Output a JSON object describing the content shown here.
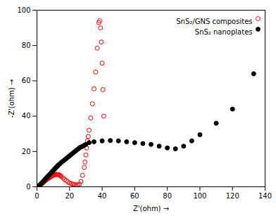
{
  "chart_data": {
    "type": "scatter",
    "xlabel": "Z'(ohm)",
    "ylabel": "-Z'(ohm)",
    "xlim": [
      0,
      140
    ],
    "ylim": [
      0,
      100
    ],
    "xticks": [
      0,
      20,
      40,
      60,
      80,
      100,
      120,
      140
    ],
    "yticks": [
      0,
      20,
      40,
      60,
      80,
      100
    ],
    "grid": false,
    "legend": "upper right",
    "series": [
      {
        "name": "SnS₂/GNS composites",
        "color": "red",
        "marker": "circle_open",
        "x": [
          1.0,
          1.5,
          2.0,
          2.5,
          3.0,
          3.5,
          4.0,
          4.5,
          5.0,
          5.5,
          6.0,
          6.5,
          7.0,
          7.5,
          8.0,
          8.5,
          9.0,
          9.5,
          10.0,
          10.5,
          11.0,
          11.5,
          12.0,
          12.5,
          13.0,
          13.5,
          14.0,
          14.5,
          15.0,
          16.0,
          17.0,
          18.0,
          19.0,
          20.0,
          21.0,
          22.0,
          23.0,
          24.0,
          25.0,
          26.0,
          27.0,
          28.0,
          29.0,
          29.5,
          30.0,
          30.5,
          31.0,
          31.5,
          32.0,
          33.0,
          34.0,
          35.0,
          36.0,
          37.0,
          38.0,
          38.5,
          39.0,
          39.5,
          40.0,
          40.5,
          41.0
        ],
        "values": [
          0.3,
          0.6,
          1.0,
          1.4,
          1.8,
          2.2,
          2.6,
          3.0,
          3.4,
          3.8,
          4.2,
          4.5,
          4.8,
          5.1,
          5.4,
          5.7,
          6.0,
          6.3,
          6.5,
          6.7,
          6.8,
          6.9,
          7.0,
          7.0,
          6.9,
          6.8,
          6.5,
          6.2,
          5.8,
          5.0,
          4.2,
          3.5,
          2.8,
          2.2,
          1.8,
          1.5,
          1.3,
          1.1,
          1.0,
          1.5,
          3.0,
          6.5,
          11.0,
          14.0,
          18.0,
          22.0,
          26.0,
          28.5,
          32.0,
          39.0,
          47.0,
          55.5,
          65.0,
          78.5,
          93.0,
          94.0,
          90.0,
          82.0,
          70.0,
          55.0,
          40.0
        ]
      },
      {
        "name": "SnS₂ nanoplates",
        "color": "black",
        "marker": "circle",
        "x": [
          1.0,
          1.5,
          2.0,
          2.5,
          3.0,
          3.5,
          4.0,
          4.5,
          5.0,
          5.5,
          6.0,
          6.5,
          7.0,
          7.5,
          8.0,
          8.5,
          9.0,
          9.5,
          10.0,
          10.5,
          11.0,
          11.5,
          12.0,
          12.5,
          13.0,
          14.0,
          15.0,
          16.0,
          17.0,
          18.0,
          19.0,
          20.0,
          21.0,
          22.0,
          23.0,
          24.0,
          25.0,
          26.0,
          27.0,
          28.0,
          29.0,
          30.0,
          32.0,
          35.0,
          40.0,
          45.0,
          50.0,
          55.0,
          60.0,
          65.0,
          70.0,
          75.0,
          80.0,
          85.0,
          90.0,
          95.0,
          100.0,
          110.0,
          120.0,
          133.0
        ],
        "values": [
          0.4,
          0.8,
          1.2,
          1.7,
          2.2,
          2.7,
          3.2,
          3.7,
          4.2,
          4.7,
          5.2,
          5.7,
          6.2,
          6.7,
          7.2,
          7.7,
          8.2,
          8.7,
          9.2,
          9.7,
          10.2,
          10.7,
          11.2,
          11.7,
          12.2,
          13.0,
          13.8,
          14.5,
          15.3,
          16.0,
          16.8,
          17.5,
          18.3,
          19.0,
          19.8,
          20.5,
          21.2,
          22.0,
          22.5,
          23.0,
          23.5,
          24.0,
          25.0,
          25.5,
          26.0,
          26.2,
          26.0,
          25.5,
          25.0,
          24.5,
          24.0,
          23.0,
          22.0,
          21.5,
          23.0,
          26.0,
          29.5,
          36.0,
          44.0,
          64.0
        ]
      }
    ]
  }
}
